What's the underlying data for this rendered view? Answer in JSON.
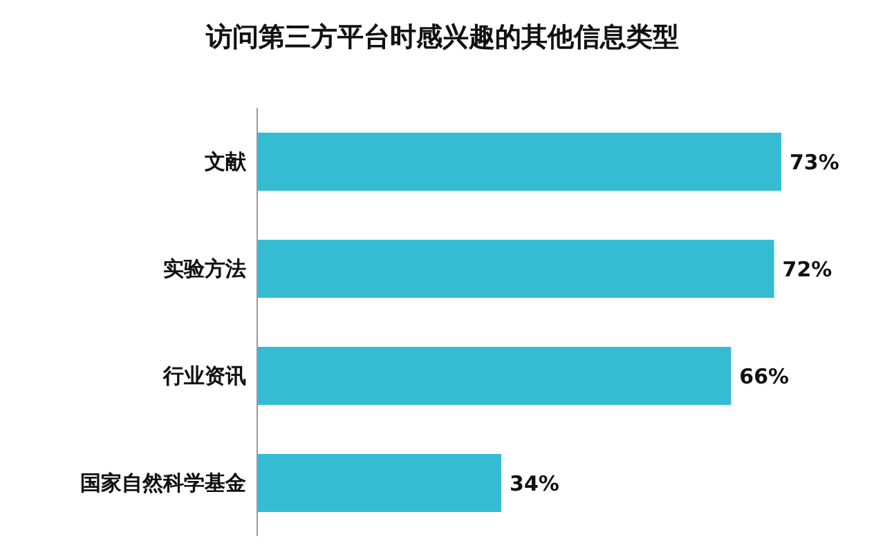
{
  "chart_data": {
    "type": "bar",
    "orientation": "horizontal",
    "title": "访问第三方平台时感兴趣的其他信息类型",
    "categories": [
      "文献",
      "实验方法",
      "行业资讯",
      "国家自然科学基金"
    ],
    "values": [
      73,
      72,
      66,
      34
    ],
    "value_labels": [
      "73%",
      "72%",
      "66%",
      "34%"
    ],
    "color": "#35bcd2",
    "tick_labels": "y",
    "grid": false
  }
}
